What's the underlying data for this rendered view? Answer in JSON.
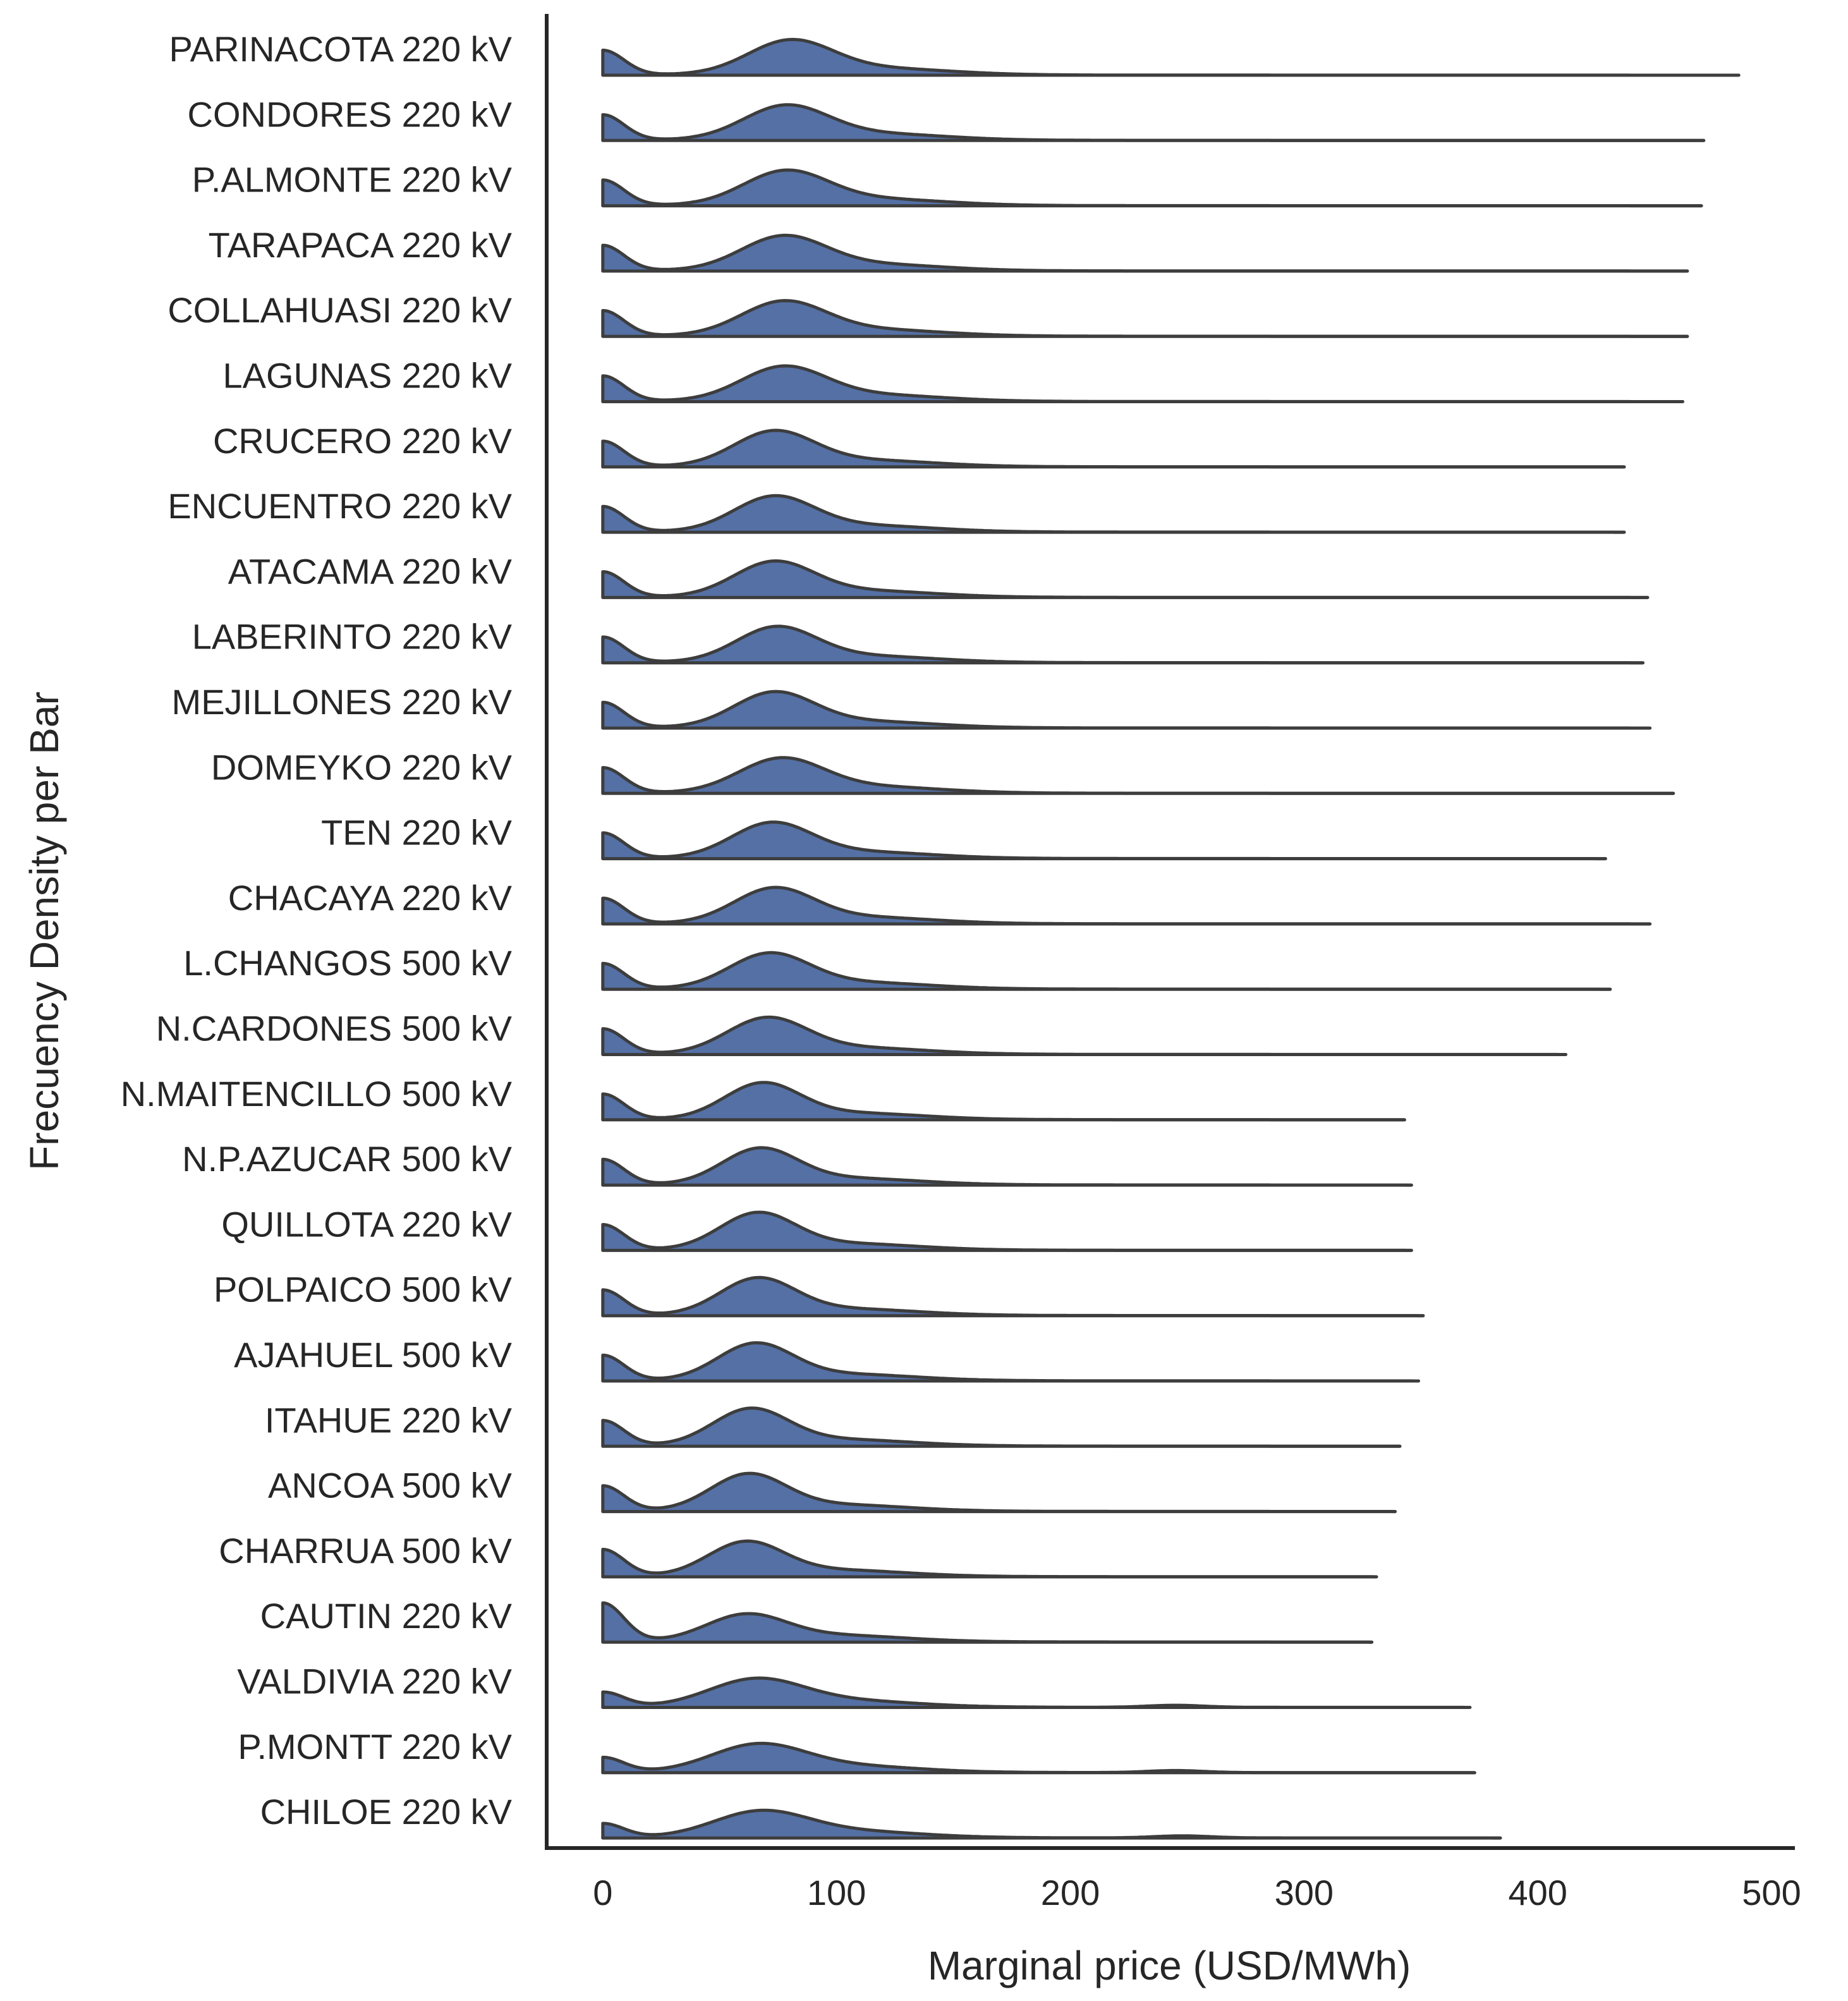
{
  "chart_data": {
    "type": "ridgeline",
    "xlabel": "Marginal price (USD/MWh)",
    "ylabel": "Frecuency Density per Bar",
    "xlim": [
      -24,
      510
    ],
    "xticks": [
      0,
      100,
      200,
      300,
      400,
      500
    ],
    "grid": false,
    "fill_color": "#5470a5",
    "line_color": "#3d3d3d",
    "series": [
      {
        "name": "PARINACOTA 220 kV",
        "max": 486,
        "zero_peak": 0.6,
        "main_mode": 80,
        "main_width": 18,
        "main_height": 0.8,
        "tail_mode": null
      },
      {
        "name": "CONDORES 220 kV",
        "max": 471,
        "zero_peak": 0.62,
        "main_mode": 78,
        "main_width": 18,
        "main_height": 0.8,
        "tail_mode": null
      },
      {
        "name": "P.ALMONTE 220 kV",
        "max": 470,
        "zero_peak": 0.62,
        "main_mode": 78,
        "main_width": 18,
        "main_height": 0.8,
        "tail_mode": null
      },
      {
        "name": "TARAPACA 220 kV",
        "max": 464,
        "zero_peak": 0.62,
        "main_mode": 77,
        "main_width": 18,
        "main_height": 0.8,
        "tail_mode": null
      },
      {
        "name": "COLLAHUASI 220 kV",
        "max": 464,
        "zero_peak": 0.62,
        "main_mode": 77,
        "main_width": 18,
        "main_height": 0.8,
        "tail_mode": null
      },
      {
        "name": "LAGUNAS 220 kV",
        "max": 462,
        "zero_peak": 0.62,
        "main_mode": 77,
        "main_width": 18,
        "main_height": 0.8,
        "tail_mode": null
      },
      {
        "name": "CRUCERO 220 kV",
        "max": 437,
        "zero_peak": 0.62,
        "main_mode": 73,
        "main_width": 17,
        "main_height": 0.82,
        "tail_mode": null
      },
      {
        "name": "ENCUENTRO 220 kV",
        "max": 437,
        "zero_peak": 0.62,
        "main_mode": 73,
        "main_width": 17,
        "main_height": 0.82,
        "tail_mode": null
      },
      {
        "name": "ATACAMA 220 kV",
        "max": 447,
        "zero_peak": 0.62,
        "main_mode": 73,
        "main_width": 17,
        "main_height": 0.82,
        "tail_mode": null
      },
      {
        "name": "LABERINTO 220 kV",
        "max": 445,
        "zero_peak": 0.62,
        "main_mode": 74,
        "main_width": 17,
        "main_height": 0.82,
        "tail_mode": null
      },
      {
        "name": "MEJILLONES 220 kV",
        "max": 448,
        "zero_peak": 0.62,
        "main_mode": 73,
        "main_width": 17,
        "main_height": 0.82,
        "tail_mode": null
      },
      {
        "name": "DOMEYKO 220 kV",
        "max": 458,
        "zero_peak": 0.62,
        "main_mode": 76,
        "main_width": 18,
        "main_height": 0.8,
        "tail_mode": null
      },
      {
        "name": "TEN 220 kV",
        "max": 429,
        "zero_peak": 0.62,
        "main_mode": 72,
        "main_width": 17,
        "main_height": 0.82,
        "tail_mode": null
      },
      {
        "name": "CHACAYA 220 kV",
        "max": 448,
        "zero_peak": 0.62,
        "main_mode": 73,
        "main_width": 17,
        "main_height": 0.82,
        "tail_mode": null
      },
      {
        "name": "L.CHANGOS 500 kV",
        "max": 431,
        "zero_peak": 0.62,
        "main_mode": 71,
        "main_width": 17,
        "main_height": 0.82,
        "tail_mode": null
      },
      {
        "name": "N.CARDONES 500 kV",
        "max": 412,
        "zero_peak": 0.62,
        "main_mode": 70,
        "main_width": 17,
        "main_height": 0.84,
        "tail_mode": null
      },
      {
        "name": "N.MAITENCILLO 500 kV",
        "max": 343,
        "zero_peak": 0.62,
        "main_mode": 68,
        "main_width": 16,
        "main_height": 0.84,
        "tail_mode": null
      },
      {
        "name": "N.P.AZUCAR 500 kV",
        "max": 346,
        "zero_peak": 0.62,
        "main_mode": 67,
        "main_width": 16,
        "main_height": 0.84,
        "tail_mode": null
      },
      {
        "name": "QUILLOTA 220 kV",
        "max": 346,
        "zero_peak": 0.62,
        "main_mode": 66,
        "main_width": 16,
        "main_height": 0.86,
        "tail_mode": null
      },
      {
        "name": "POLPAICO 500 kV",
        "max": 351,
        "zero_peak": 0.62,
        "main_mode": 66,
        "main_width": 16,
        "main_height": 0.86,
        "tail_mode": null
      },
      {
        "name": "AJAHUEL 500 kV",
        "max": 349,
        "zero_peak": 0.62,
        "main_mode": 65,
        "main_width": 16,
        "main_height": 0.86,
        "tail_mode": null
      },
      {
        "name": "ITAHUE 220 kV",
        "max": 341,
        "zero_peak": 0.62,
        "main_mode": 63,
        "main_width": 16,
        "main_height": 0.86,
        "tail_mode": null
      },
      {
        "name": "ANCOA 500 kV",
        "max": 339,
        "zero_peak": 0.62,
        "main_mode": 62,
        "main_width": 16,
        "main_height": 0.86,
        "tail_mode": null
      },
      {
        "name": "CHARRUA 500 kV",
        "max": 331,
        "zero_peak": 0.66,
        "main_mode": 61,
        "main_width": 16,
        "main_height": 0.8,
        "tail_mode": null
      },
      {
        "name": "CAUTIN 220 kV",
        "max": 329,
        "zero_peak": 0.95,
        "main_mode": 61,
        "main_width": 17,
        "main_height": 0.62,
        "tail_mode": null
      },
      {
        "name": "VALDIVIA 220 kV",
        "max": 371,
        "zero_peak": 0.36,
        "main_mode": 65,
        "main_width": 20,
        "main_height": 0.64,
        "tail_mode": 245
      },
      {
        "name": "P.MONTT 220 kV",
        "max": 373,
        "zero_peak": 0.36,
        "main_mode": 66,
        "main_width": 20,
        "main_height": 0.64,
        "tail_mode": 245
      },
      {
        "name": "CHILOE 220 kV",
        "max": 384,
        "zero_peak": 0.34,
        "main_mode": 67,
        "main_width": 20,
        "main_height": 0.6,
        "tail_mode": 248
      }
    ]
  }
}
